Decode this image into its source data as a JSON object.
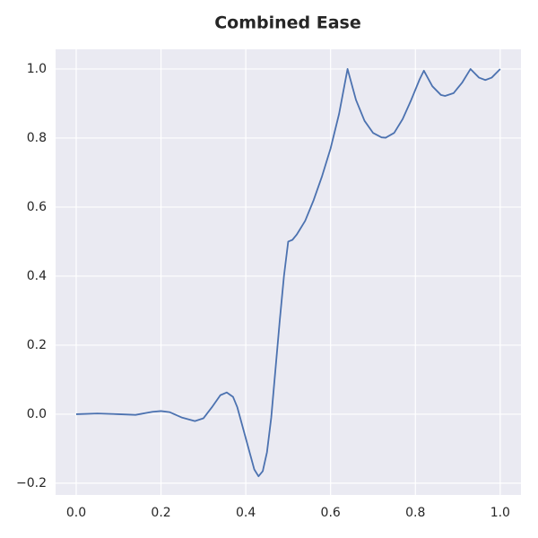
{
  "chart_data": {
    "type": "line",
    "title": "Combined Ease",
    "x": [
      0,
      0.05,
      0.1,
      0.14,
      0.18,
      0.2,
      0.22,
      0.25,
      0.28,
      0.3,
      0.32,
      0.34,
      0.355,
      0.37,
      0.38,
      0.4,
      0.42,
      0.43,
      0.44,
      0.45,
      0.46,
      0.47,
      0.48,
      0.49,
      0.5,
      0.51,
      0.52,
      0.54,
      0.56,
      0.58,
      0.6,
      0.62,
      0.64,
      0.66,
      0.68,
      0.7,
      0.72,
      0.73,
      0.75,
      0.77,
      0.79,
      0.81,
      0.82,
      0.84,
      0.86,
      0.87,
      0.89,
      0.91,
      0.93,
      0.95,
      0.965,
      0.98,
      1.0
    ],
    "series": [
      {
        "color": "#4c72b0",
        "values": [
          0,
          0.002,
          0.0,
          -0.002,
          0.007,
          0.009,
          0.006,
          -0.01,
          -0.02,
          -0.012,
          0.02,
          0.055,
          0.063,
          0.05,
          0.02,
          -0.07,
          -0.16,
          -0.18,
          -0.165,
          -0.11,
          -0.01,
          0.13,
          0.27,
          0.4,
          0.5,
          0.505,
          0.52,
          0.56,
          0.62,
          0.69,
          0.77,
          0.87,
          1.0,
          0.91,
          0.85,
          0.815,
          0.802,
          0.801,
          0.815,
          0.855,
          0.91,
          0.97,
          0.995,
          0.95,
          0.925,
          0.922,
          0.93,
          0.96,
          1.0,
          0.975,
          0.968,
          0.975,
          1.0
        ]
      }
    ],
    "xlim": [
      -0.0486,
      1.049
    ],
    "ylim": [
      -0.234,
      1.057
    ],
    "xticks": [
      {
        "value": 0,
        "label": "0.0"
      },
      0.2,
      0.4,
      0.6,
      0.8,
      {
        "value": 1,
        "label": "1.0"
      }
    ],
    "yticks": [
      {
        "value": -0.2,
        "label": "−0.2"
      },
      {
        "value": 0,
        "label": "0.0"
      },
      0.2,
      0.4,
      0.6,
      0.8,
      {
        "value": 1,
        "label": "1.0"
      }
    ],
    "grid": true
  }
}
